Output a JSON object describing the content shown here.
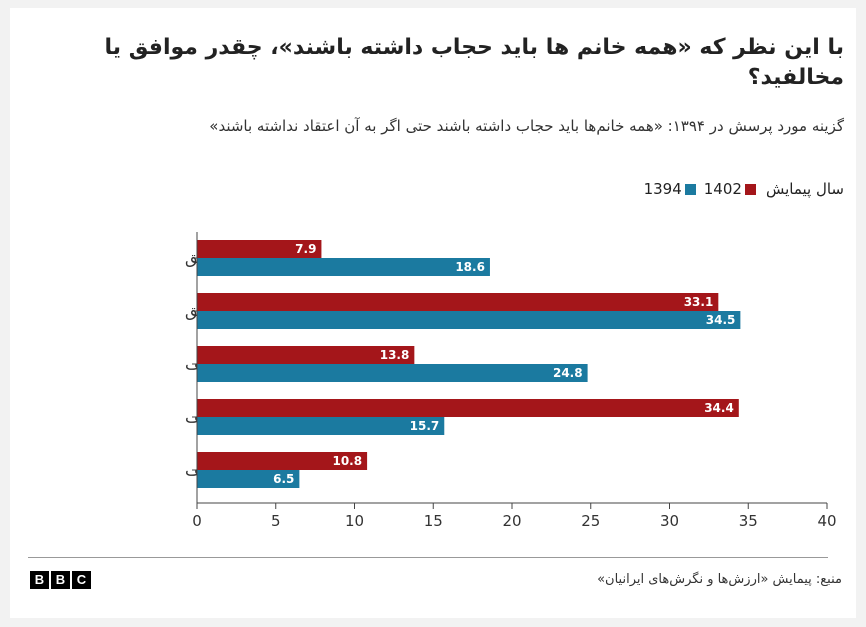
{
  "title": "با این نظر که «همه خانم ها باید حجاب داشته باشند»، چقدر موافق یا مخالفید؟",
  "subtitle": "گزینه مورد پرسش در ۱۳۹۴: «همه خانم‌ها باید حجاب داشته باشند حتی اگر به آن اعتقاد نداشته باشند»",
  "legend": {
    "label": "سال پیمایش",
    "items": [
      {
        "name": "1402",
        "color": "#a4161a"
      },
      {
        "name": "1394",
        "color": "#1b7aa0"
      }
    ]
  },
  "source": "منبع: پیمایش «ارزش‌ها و نگرش‌های ایرانیان»",
  "logo": [
    "B",
    "B",
    "C"
  ],
  "chart_data": {
    "type": "bar",
    "orientation": "horizontal",
    "categories": [
      "کاملا موافق",
      "موافق",
      "نه موافق، نه مخالف",
      "مخالف",
      "کاملا مخالف"
    ],
    "series": [
      {
        "name": "1402",
        "color": "#a4161a",
        "values": [
          7.9,
          33.1,
          13.8,
          34.4,
          10.8
        ]
      },
      {
        "name": "1394",
        "color": "#1b7aa0",
        "values": [
          18.6,
          34.5,
          24.8,
          15.7,
          6.5
        ]
      }
    ],
    "xlim": [
      0,
      40
    ],
    "xticks": [
      0,
      5,
      10,
      15,
      20,
      25,
      30,
      35,
      40
    ],
    "grid": false,
    "legend_position": "top-right",
    "data_labels": true
  }
}
